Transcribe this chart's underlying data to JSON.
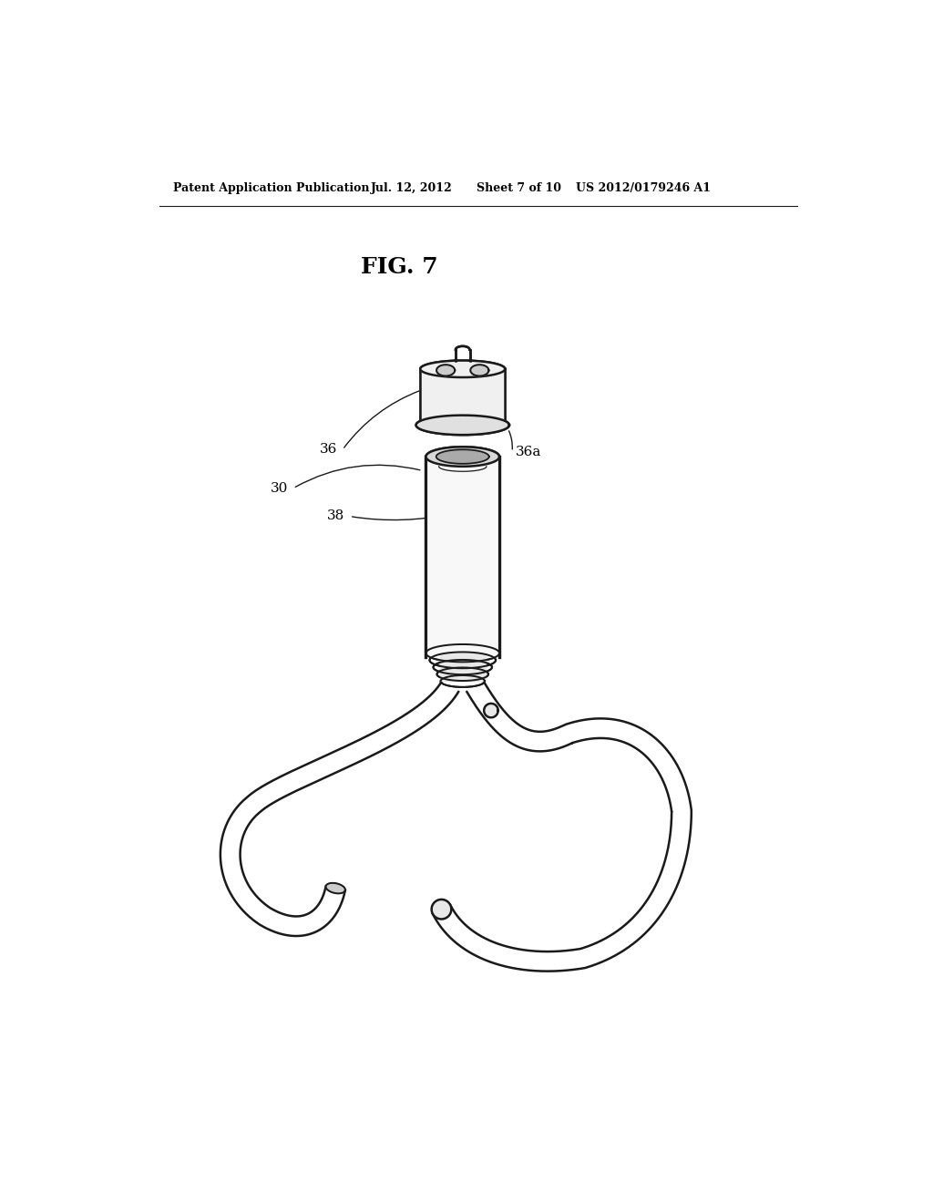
{
  "background_color": "#ffffff",
  "header_text": "Patent Application Publication",
  "header_date": "Jul. 12, 2012",
  "header_sheet": "Sheet 7 of 10",
  "header_patent": "US 2012/0179246 A1",
  "fig_label": "FIG. 7",
  "line_color": "#1a1a1a",
  "line_width": 1.8,
  "figsize": [
    10.24,
    13.2
  ],
  "dpi": 100
}
